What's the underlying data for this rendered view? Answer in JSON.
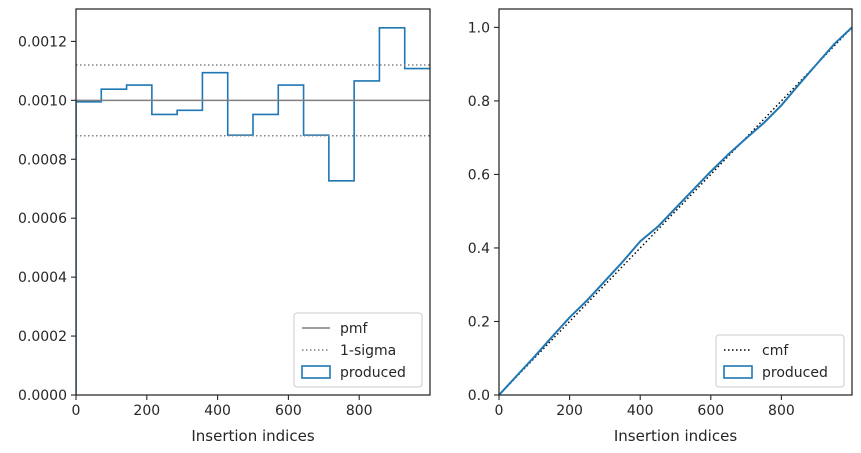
{
  "chart_data": [
    {
      "type": "line",
      "subtype": "step-histogram",
      "xlabel": "Insertion indices",
      "ylabel": "",
      "xlim": [
        0,
        1000
      ],
      "ylim": [
        0,
        0.00131
      ],
      "xticks": [
        0,
        200,
        400,
        600,
        800
      ],
      "xtick_labels": [
        "0",
        "200",
        "400",
        "600",
        "800"
      ],
      "yticks": [
        0,
        0.0002,
        0.0004,
        0.0006,
        0.0008,
        0.001,
        0.0012
      ],
      "ytick_labels": [
        "0.0000",
        "0.0002",
        "0.0004",
        "0.0006",
        "0.0008",
        "0.0010",
        "0.0012"
      ],
      "bin_edges": [
        0,
        71.4,
        142.9,
        214.3,
        285.7,
        357.1,
        428.6,
        500,
        571.4,
        642.9,
        714.3,
        785.7,
        857.1,
        928.6,
        1000
      ],
      "series": [
        {
          "name": "produced",
          "style": "step",
          "color": "#1f77b4",
          "values": [
            0.000995,
            0.001038,
            0.001052,
            0.000952,
            0.000966,
            0.001094,
            0.000882,
            0.000952,
            0.001052,
            0.000882,
            0.000727,
            0.001066,
            0.001246,
            0.001108
          ]
        },
        {
          "name": "pmf",
          "style": "solid-hline",
          "color": "#808080",
          "y": 0.001
        },
        {
          "name": "1-sigma",
          "style": "dotted-hline",
          "color": "#808080",
          "y": [
            0.00112,
            0.00088
          ]
        }
      ],
      "legend": {
        "placement": "lower right",
        "entries": [
          {
            "label": "pmf",
            "kind": "line-solid"
          },
          {
            "label": "1-sigma",
            "kind": "line-dotted"
          },
          {
            "label": "produced",
            "kind": "patch"
          }
        ]
      },
      "grid": false
    },
    {
      "type": "line",
      "xlabel": "Insertion indices",
      "ylabel": "",
      "xlim": [
        0,
        1000
      ],
      "ylim": [
        0,
        1.05
      ],
      "xticks": [
        0,
        200,
        400,
        600,
        800
      ],
      "xtick_labels": [
        "0",
        "200",
        "400",
        "600",
        "800"
      ],
      "yticks": [
        0,
        0.2,
        0.4,
        0.6,
        0.8,
        1.0
      ],
      "ytick_labels": [
        "0.0",
        "0.2",
        "0.4",
        "0.6",
        "0.8",
        "1.0"
      ],
      "series": [
        {
          "name": "cmf",
          "style": "dotted",
          "color": "#000000",
          "x": [
            0,
            1000
          ],
          "y": [
            0,
            1.0
          ]
        },
        {
          "name": "produced",
          "style": "solid",
          "color": "#1f77b4",
          "x": [
            0,
            50,
            100,
            150,
            200,
            250,
            300,
            350,
            400,
            450,
            500,
            550,
            600,
            650,
            700,
            750,
            800,
            850,
            900,
            950,
            1000
          ],
          "y": [
            0,
            0.052,
            0.104,
            0.158,
            0.211,
            0.258,
            0.31,
            0.362,
            0.418,
            0.458,
            0.508,
            0.558,
            0.608,
            0.655,
            0.698,
            0.74,
            0.788,
            0.845,
            0.9,
            0.955,
            1.0
          ]
        }
      ],
      "legend": {
        "placement": "lower right",
        "entries": [
          {
            "label": "cmf",
            "kind": "line-dotted"
          },
          {
            "label": "produced",
            "kind": "patch"
          }
        ]
      },
      "grid": false
    }
  ]
}
